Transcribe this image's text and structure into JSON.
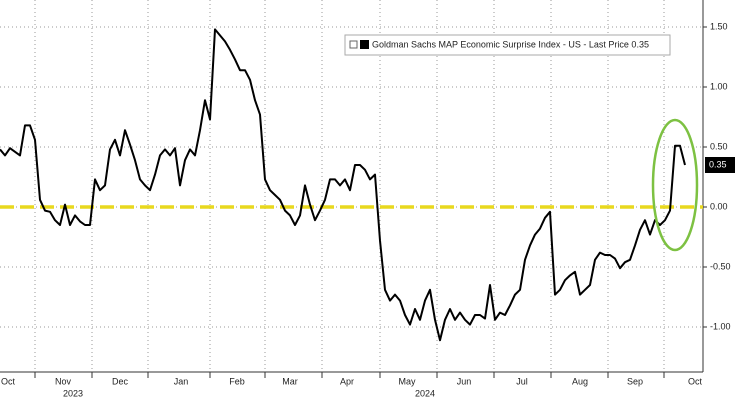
{
  "chart_data": {
    "type": "line",
    "series": [
      {
        "name": "Goldman Sachs MAP Economic Surprise Index - US - Last Price 0.35",
        "color": "#000000",
        "values": [
          0.48,
          0.43,
          0.49,
          0.46,
          0.43,
          0.68,
          0.68,
          0.56,
          0.06,
          -0.03,
          -0.04,
          -0.11,
          -0.15,
          0.02,
          -0.15,
          -0.07,
          -0.12,
          -0.15,
          -0.15,
          0.23,
          0.14,
          0.18,
          0.48,
          0.56,
          0.43,
          0.64,
          0.52,
          0.39,
          0.23,
          0.18,
          0.14,
          0.27,
          0.43,
          0.48,
          0.43,
          0.49,
          0.18,
          0.39,
          0.48,
          0.43,
          0.64,
          0.89,
          0.73,
          1.48,
          1.43,
          1.38,
          1.31,
          1.23,
          1.14,
          1.14,
          1.06,
          0.89,
          0.77,
          0.23,
          0.14,
          0.1,
          0.06,
          -0.03,
          -0.07,
          -0.15,
          -0.07,
          0.18,
          0.02,
          -0.11,
          -0.03,
          0.06,
          0.23,
          0.23,
          0.18,
          0.23,
          0.14,
          0.35,
          0.35,
          0.31,
          0.23,
          0.27,
          -0.28,
          -0.69,
          -0.78,
          -0.73,
          -0.78,
          -0.9,
          -0.98,
          -0.85,
          -0.94,
          -0.78,
          -0.69,
          -0.94,
          -1.11,
          -0.94,
          -0.85,
          -0.94,
          -0.88,
          -0.94,
          -0.98,
          -0.9,
          -0.9,
          -0.93,
          -0.65,
          -0.94,
          -0.88,
          -0.9,
          -0.82,
          -0.73,
          -0.69,
          -0.44,
          -0.32,
          -0.23,
          -0.18,
          -0.09,
          -0.04,
          -0.73,
          -0.69,
          -0.61,
          -0.57,
          -0.54,
          -0.73,
          -0.69,
          -0.65,
          -0.44,
          -0.38,
          -0.4,
          -0.4,
          -0.43,
          -0.51,
          -0.46,
          -0.44,
          -0.32,
          -0.19,
          -0.11,
          -0.23,
          -0.11,
          -0.15,
          -0.11,
          -0.03,
          0.51,
          0.51,
          0.35
        ]
      }
    ],
    "xlim": [
      0,
      140
    ],
    "xticks": [
      {
        "value": 1.6,
        "label": "Oct"
      },
      {
        "value": 12.6,
        "label": "Nov"
      },
      {
        "value": 24,
        "label": "Dec"
      },
      {
        "value": 36.2,
        "label": "Jan"
      },
      {
        "value": 47.4,
        "label": "Feb"
      },
      {
        "value": 58,
        "label": "Mar"
      },
      {
        "value": 69.4,
        "label": "Apr"
      },
      {
        "value": 81.4,
        "label": "May"
      },
      {
        "value": 92.8,
        "label": "Jun"
      },
      {
        "value": 104.4,
        "label": "Jul"
      },
      {
        "value": 116,
        "label": "Aug"
      },
      {
        "value": 127,
        "label": "Sep"
      },
      {
        "value": 139,
        "label": "Oct"
      }
    ],
    "xgrid": [
      7,
      18.4,
      29.6,
      42,
      53,
      64.4,
      76,
      87.4,
      98.8,
      110.2,
      121.6,
      132.8
    ],
    "year_labels": [
      {
        "value": 14.6,
        "label": "2023"
      },
      {
        "value": 85,
        "label": "2024"
      }
    ],
    "ylim": [
      -1.375,
      1.725
    ],
    "yticks": [
      {
        "value": 1.5,
        "label": "1.50"
      },
      {
        "value": 1,
        "label": "1.00"
      },
      {
        "value": 0.5,
        "label": "0.50"
      },
      {
        "value": 0,
        "label": "0.00"
      },
      {
        "value": -0.5,
        "label": "-0.50"
      },
      {
        "value": -1,
        "label": "-1.00"
      }
    ],
    "grid": true,
    "reference_line": {
      "value": 0,
      "color": "#e8d81e"
    },
    "highlight_color": "#7dc142"
  }
}
